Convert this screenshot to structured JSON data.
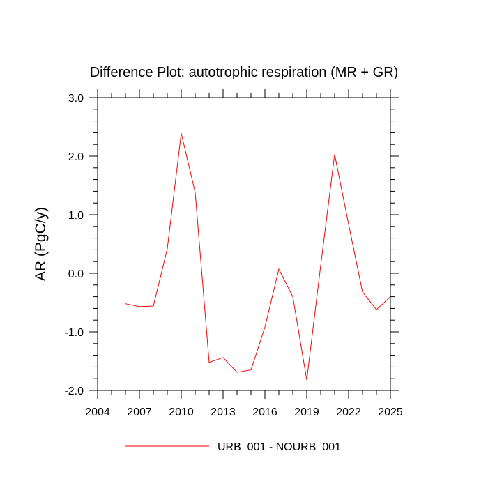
{
  "chart_data": {
    "type": "line",
    "title": "Difference Plot: autotrophic respiration (MR + GR)",
    "xlabel": "",
    "ylabel": "AR  (PgC/y)",
    "xlim": [
      2004,
      2025
    ],
    "ylim": [
      -2.0,
      3.0
    ],
    "x_ticks": [
      2004,
      2007,
      2010,
      2013,
      2016,
      2019,
      2022,
      2025
    ],
    "y_ticks": [
      -2.0,
      -1.0,
      0.0,
      1.0,
      2.0,
      3.0
    ],
    "y_tick_labels": [
      "-2.0",
      "-1.0",
      "0.0",
      "1.0",
      "2.0",
      "3.0"
    ],
    "x": [
      2006,
      2007,
      2008,
      2009,
      2010,
      2011,
      2012,
      2013,
      2014,
      2015,
      2016,
      2017,
      2018,
      2019,
      2020,
      2021,
      2022,
      2023,
      2024,
      2025
    ],
    "series": [
      {
        "name": "URB_001 - NOURB_001",
        "color": "#ff0000",
        "values": [
          -0.52,
          -0.57,
          -0.56,
          0.42,
          2.39,
          1.38,
          -1.52,
          -1.44,
          -1.69,
          -1.65,
          -0.92,
          0.07,
          -0.4,
          -1.82,
          0.13,
          2.03,
          0.84,
          -0.32,
          -0.62,
          -0.4
        ]
      }
    ],
    "grid": false,
    "legend_position": "bottom-center"
  }
}
